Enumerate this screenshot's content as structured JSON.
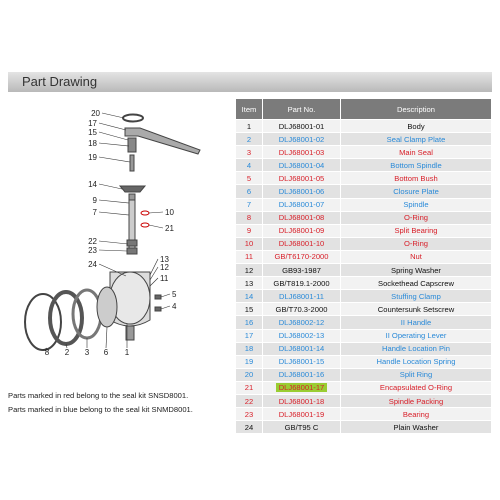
{
  "header": {
    "title": "Part Drawing"
  },
  "drawing": {
    "callouts": [
      "20",
      "17",
      "15",
      "18",
      "19",
      "14",
      "9",
      "7",
      "22",
      "23",
      "24",
      "10",
      "21",
      "13",
      "12",
      "11",
      "5",
      "4",
      "8",
      "2",
      "3",
      "6",
      "1"
    ]
  },
  "notes": [
    "Parts marked in red  belong to the seal kit SNSD8001.",
    "Parts marked in blue  belong to the seal kit SNMD8001."
  ],
  "table": {
    "columns": [
      "Item",
      "Part No.",
      "Description"
    ],
    "rows": [
      {
        "cells": [
          "1",
          "DLJ68001-01",
          "Body"
        ],
        "color": "black"
      },
      {
        "cells": [
          "2",
          "DLJ68001-02",
          "Seal Clamp Plate"
        ],
        "color": "blue"
      },
      {
        "cells": [
          "3",
          "DLJ68001-03",
          "Main Seal"
        ],
        "color": "red"
      },
      {
        "cells": [
          "4",
          "DLJ68001-04",
          "Bottom Spindle"
        ],
        "color": "blue"
      },
      {
        "cells": [
          "5",
          "DLJ68001-05",
          "Bottom Bush"
        ],
        "color": "red"
      },
      {
        "cells": [
          "6",
          "DLJ68001-06",
          "Closure Plate"
        ],
        "color": "blue"
      },
      {
        "cells": [
          "7",
          "DLJ68001-07",
          "Spindle"
        ],
        "color": "blue"
      },
      {
        "cells": [
          "8",
          "DLJ68001-08",
          "O-Ring"
        ],
        "color": "red"
      },
      {
        "cells": [
          "9",
          "DLJ68001-09",
          "Split Bearing"
        ],
        "color": "red"
      },
      {
        "cells": [
          "10",
          "DLJ68001-10",
          "O-Ring"
        ],
        "color": "red"
      },
      {
        "cells": [
          "11",
          "GB/T6170-2000",
          "Nut"
        ],
        "color": "red"
      },
      {
        "cells": [
          "12",
          "GB93-1987",
          "Spring Washer"
        ],
        "color": "black"
      },
      {
        "cells": [
          "13",
          "GB/T819.1-2000",
          "Sockethead Capscrew"
        ],
        "color": "black"
      },
      {
        "cells": [
          "14",
          "DLJ68001-11",
          "Stuffing Clamp"
        ],
        "color": "blue"
      },
      {
        "cells": [
          "15",
          "GB/T70.3-2000",
          "Countersunk Setscrew"
        ],
        "color": "black"
      },
      {
        "cells": [
          "16",
          "DLJ68002-12",
          "II Handle"
        ],
        "color": "blue"
      },
      {
        "cells": [
          "17",
          "DLJ68002-13",
          "II Operating Lever"
        ],
        "color": "blue"
      },
      {
        "cells": [
          "18",
          "DLJ68001-14",
          "Handle Location Pin"
        ],
        "color": "blue"
      },
      {
        "cells": [
          "19",
          "DLJ68001-15",
          "Handle Location Spring"
        ],
        "color": "blue"
      },
      {
        "cells": [
          "20",
          "DLJ68001-16",
          "Split Ring"
        ],
        "color": "blue"
      },
      {
        "cells": [
          "21",
          "DLJ68001-17",
          "Encapsulated O-Ring"
        ],
        "color": "red",
        "highlighted": true
      },
      {
        "cells": [
          "22",
          "DLJ68001-18",
          "Spindle Packing"
        ],
        "color": "red"
      },
      {
        "cells": [
          "23",
          "DLJ68001-19",
          "Bearing"
        ],
        "color": "red"
      },
      {
        "cells": [
          "24",
          "GB/T95 C",
          "Plain Washer"
        ],
        "color": "black"
      }
    ]
  }
}
